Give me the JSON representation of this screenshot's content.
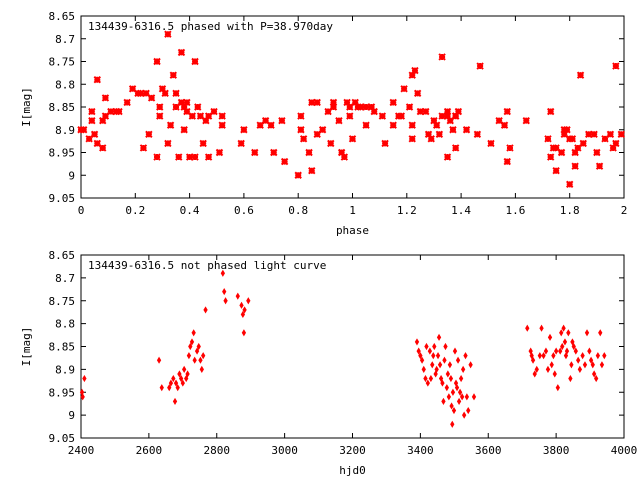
{
  "colors": {
    "points": "#ff0000",
    "axes": "#000000",
    "background": "#ffffff"
  },
  "chart_data": [
    {
      "type": "scatter",
      "title": "134439-6316.5 phased with P=38.970day",
      "xlabel": "phase",
      "ylabel": "I[mag]",
      "xlim": [
        0,
        2
      ],
      "ylim": [
        9.05,
        8.65
      ],
      "y_inverted": true,
      "grid": false,
      "marker": "star",
      "xticks": [
        "0",
        "0.2",
        "0.4",
        "0.6",
        "0.8",
        "1",
        "1.2",
        "1.4",
        "1.6",
        "1.8",
        "2"
      ],
      "yticks": [
        "8.65",
        "8.7",
        "8.75",
        "8.8",
        "8.85",
        "8.9",
        "8.95",
        "9",
        "9.05"
      ],
      "points": [
        [
          0.0,
          8.9
        ],
        [
          0.01,
          8.9
        ],
        [
          0.03,
          8.92
        ],
        [
          0.04,
          8.86
        ],
        [
          0.04,
          8.88
        ],
        [
          0.05,
          8.91
        ],
        [
          0.06,
          8.93
        ],
        [
          0.06,
          8.79
        ],
        [
          0.08,
          8.88
        ],
        [
          0.08,
          8.94
        ],
        [
          0.09,
          8.83
        ],
        [
          0.09,
          8.87
        ],
        [
          0.11,
          8.86
        ],
        [
          0.13,
          8.86
        ],
        [
          0.14,
          8.86
        ],
        [
          0.17,
          8.84
        ],
        [
          0.19,
          8.81
        ],
        [
          0.21,
          8.82
        ],
        [
          0.22,
          8.82
        ],
        [
          0.23,
          8.94
        ],
        [
          0.24,
          8.82
        ],
        [
          0.25,
          8.91
        ],
        [
          0.26,
          8.83
        ],
        [
          0.28,
          8.96
        ],
        [
          0.28,
          8.75
        ],
        [
          0.29,
          8.85
        ],
        [
          0.29,
          8.87
        ],
        [
          0.3,
          8.81
        ],
        [
          0.31,
          8.82
        ],
        [
          0.32,
          8.93
        ],
        [
          0.32,
          8.69
        ],
        [
          0.33,
          8.89
        ],
        [
          0.34,
          8.78
        ],
        [
          0.35,
          8.82
        ],
        [
          0.35,
          8.85
        ],
        [
          0.36,
          8.96
        ],
        [
          0.37,
          8.84
        ],
        [
          0.37,
          8.73
        ],
        [
          0.38,
          8.9
        ],
        [
          0.38,
          8.85
        ],
        [
          0.39,
          8.84
        ],
        [
          0.39,
          8.86
        ],
        [
          0.4,
          8.96
        ],
        [
          0.41,
          8.87
        ],
        [
          0.42,
          8.75
        ],
        [
          0.42,
          8.96
        ],
        [
          0.43,
          8.85
        ],
        [
          0.44,
          8.87
        ],
        [
          0.45,
          8.93
        ],
        [
          0.46,
          8.88
        ],
        [
          0.47,
          8.96
        ],
        [
          0.47,
          8.87
        ],
        [
          0.49,
          8.86
        ],
        [
          0.51,
          8.95
        ],
        [
          0.52,
          8.89
        ],
        [
          0.52,
          8.87
        ],
        [
          0.59,
          8.93
        ],
        [
          0.6,
          8.9
        ],
        [
          0.64,
          8.95
        ],
        [
          0.66,
          8.89
        ],
        [
          0.68,
          8.88
        ],
        [
          0.7,
          8.89
        ],
        [
          0.71,
          8.95
        ],
        [
          0.74,
          8.88
        ],
        [
          0.75,
          8.97
        ],
        [
          0.8,
          9.0
        ],
        [
          0.81,
          8.87
        ],
        [
          0.81,
          8.9
        ],
        [
          0.82,
          8.92
        ],
        [
          0.84,
          8.95
        ],
        [
          0.85,
          8.84
        ],
        [
          0.85,
          8.99
        ],
        [
          0.87,
          8.84
        ],
        [
          0.87,
          8.91
        ],
        [
          0.89,
          8.9
        ],
        [
          0.91,
          8.86
        ],
        [
          0.92,
          8.93
        ],
        [
          0.93,
          8.84
        ],
        [
          0.93,
          8.85
        ],
        [
          0.95,
          8.88
        ],
        [
          0.96,
          8.95
        ],
        [
          0.97,
          8.96
        ],
        [
          0.98,
          8.84
        ],
        [
          0.99,
          8.85
        ],
        [
          0.99,
          8.87
        ],
        [
          1.0,
          8.92
        ],
        [
          1.01,
          8.84
        ],
        [
          1.02,
          8.85
        ],
        [
          1.03,
          8.85
        ],
        [
          1.05,
          8.85
        ],
        [
          1.05,
          8.89
        ],
        [
          1.07,
          8.85
        ],
        [
          1.08,
          8.86
        ],
        [
          1.11,
          8.87
        ],
        [
          1.12,
          8.93
        ],
        [
          1.15,
          8.84
        ],
        [
          1.15,
          8.89
        ],
        [
          1.17,
          8.87
        ],
        [
          1.18,
          8.87
        ],
        [
          1.19,
          8.81
        ],
        [
          1.21,
          8.85
        ],
        [
          1.22,
          8.92
        ],
        [
          1.22,
          8.78
        ],
        [
          1.22,
          8.89
        ],
        [
          1.23,
          8.77
        ],
        [
          1.24,
          8.82
        ],
        [
          1.25,
          8.86
        ],
        [
          1.27,
          8.86
        ],
        [
          1.28,
          8.91
        ],
        [
          1.29,
          8.92
        ],
        [
          1.3,
          8.88
        ],
        [
          1.31,
          8.89
        ],
        [
          1.32,
          8.91
        ],
        [
          1.33,
          8.87
        ],
        [
          1.33,
          8.74
        ],
        [
          1.35,
          8.86
        ],
        [
          1.35,
          8.87
        ],
        [
          1.35,
          8.96
        ],
        [
          1.36,
          8.88
        ],
        [
          1.37,
          8.9
        ],
        [
          1.38,
          8.87
        ],
        [
          1.38,
          8.87
        ],
        [
          1.38,
          8.94
        ],
        [
          1.39,
          8.86
        ],
        [
          1.42,
          8.9
        ],
        [
          1.46,
          8.91
        ],
        [
          1.47,
          8.76
        ],
        [
          1.51,
          8.93
        ],
        [
          1.54,
          8.88
        ],
        [
          1.56,
          8.89
        ],
        [
          1.57,
          8.86
        ],
        [
          1.58,
          8.94
        ],
        [
          1.57,
          8.97
        ],
        [
          1.64,
          8.88
        ],
        [
          1.72,
          8.92
        ],
        [
          1.73,
          8.86
        ],
        [
          1.73,
          8.96
        ],
        [
          1.74,
          8.94
        ],
        [
          1.75,
          8.99
        ],
        [
          1.75,
          8.94
        ],
        [
          1.77,
          8.95
        ],
        [
          1.78,
          8.9
        ],
        [
          1.78,
          8.91
        ],
        [
          1.79,
          8.9
        ],
        [
          1.8,
          9.02
        ],
        [
          1.8,
          8.92
        ],
        [
          1.81,
          8.92
        ],
        [
          1.82,
          8.95
        ],
        [
          1.82,
          8.98
        ],
        [
          1.83,
          8.94
        ],
        [
          1.84,
          8.78
        ],
        [
          1.85,
          8.93
        ],
        [
          1.87,
          8.91
        ],
        [
          1.89,
          8.91
        ],
        [
          1.9,
          8.95
        ],
        [
          1.91,
          8.98
        ],
        [
          1.93,
          8.92
        ],
        [
          1.95,
          8.91
        ],
        [
          1.96,
          8.94
        ],
        [
          1.97,
          8.93
        ],
        [
          1.97,
          8.76
        ],
        [
          1.99,
          8.91
        ]
      ]
    },
    {
      "type": "scatter",
      "title": "134439-6316.5 not phased light curve",
      "xlabel": "hjd0",
      "ylabel": "I[mag]",
      "xlim": [
        2400,
        4000
      ],
      "ylim": [
        9.05,
        8.65
      ],
      "y_inverted": true,
      "grid": false,
      "marker": "diamond",
      "xticks": [
        "2400",
        "2600",
        "2800",
        "3000",
        "3200",
        "3400",
        "3600",
        "3800",
        "4000"
      ],
      "yticks": [
        "8.65",
        "8.7",
        "8.75",
        "8.8",
        "8.85",
        "8.9",
        "8.95",
        "9",
        "9.05"
      ],
      "points": [
        [
          2403,
          8.95
        ],
        [
          2405,
          8.96
        ],
        [
          2410,
          8.92
        ],
        [
          2630,
          8.88
        ],
        [
          2638,
          8.94
        ],
        [
          2660,
          8.94
        ],
        [
          2665,
          8.93
        ],
        [
          2672,
          8.92
        ],
        [
          2677,
          8.97
        ],
        [
          2680,
          8.93
        ],
        [
          2685,
          8.94
        ],
        [
          2690,
          8.91
        ],
        [
          2695,
          8.92
        ],
        [
          2700,
          8.93
        ],
        [
          2704,
          8.9
        ],
        [
          2710,
          8.92
        ],
        [
          2714,
          8.91
        ],
        [
          2718,
          8.87
        ],
        [
          2722,
          8.85
        ],
        [
          2727,
          8.84
        ],
        [
          2732,
          8.82
        ],
        [
          2735,
          8.88
        ],
        [
          2742,
          8.86
        ],
        [
          2747,
          8.85
        ],
        [
          2752,
          8.88
        ],
        [
          2756,
          8.9
        ],
        [
          2760,
          8.87
        ],
        [
          2767,
          8.77
        ],
        [
          2818,
          8.69
        ],
        [
          2822,
          8.73
        ],
        [
          2826,
          8.75
        ],
        [
          2862,
          8.74
        ],
        [
          2873,
          8.76
        ],
        [
          2877,
          8.78
        ],
        [
          2880,
          8.82
        ],
        [
          2882,
          8.77
        ],
        [
          2893,
          8.75
        ],
        [
          3390,
          8.84
        ],
        [
          3395,
          8.86
        ],
        [
          3400,
          8.87
        ],
        [
          3405,
          8.88
        ],
        [
          3410,
          8.9
        ],
        [
          3415,
          8.92
        ],
        [
          3418,
          8.85
        ],
        [
          3422,
          8.93
        ],
        [
          3428,
          8.86
        ],
        [
          3431,
          8.92
        ],
        [
          3435,
          8.89
        ],
        [
          3438,
          8.87
        ],
        [
          3441,
          8.85
        ],
        [
          3445,
          8.91
        ],
        [
          3448,
          8.9
        ],
        [
          3452,
          8.87
        ],
        [
          3455,
          8.83
        ],
        [
          3458,
          8.89
        ],
        [
          3461,
          8.92
        ],
        [
          3465,
          8.93
        ],
        [
          3468,
          8.97
        ],
        [
          3471,
          8.88
        ],
        [
          3474,
          8.85
        ],
        [
          3478,
          8.94
        ],
        [
          3481,
          8.91
        ],
        [
          3484,
          8.96
        ],
        [
          3487,
          8.89
        ],
        [
          3490,
          8.92
        ],
        [
          3492,
          8.98
        ],
        [
          3494,
          9.02
        ],
        [
          3496,
          8.95
        ],
        [
          3499,
          8.99
        ],
        [
          3502,
          8.86
        ],
        [
          3505,
          8.93
        ],
        [
          3508,
          8.94
        ],
        [
          3511,
          8.88
        ],
        [
          3514,
          8.97
        ],
        [
          3517,
          8.95
        ],
        [
          3520,
          8.92
        ],
        [
          3523,
          8.96
        ],
        [
          3526,
          8.9
        ],
        [
          3529,
          9.0
        ],
        [
          3533,
          8.87
        ],
        [
          3537,
          8.96
        ],
        [
          3541,
          8.99
        ],
        [
          3548,
          8.89
        ],
        [
          3558,
          8.96
        ],
        [
          3715,
          8.81
        ],
        [
          3725,
          8.86
        ],
        [
          3728,
          8.87
        ],
        [
          3732,
          8.88
        ],
        [
          3737,
          8.91
        ],
        [
          3743,
          8.9
        ],
        [
          3752,
          8.87
        ],
        [
          3757,
          8.81
        ],
        [
          3763,
          8.87
        ],
        [
          3770,
          8.86
        ],
        [
          3776,
          8.9
        ],
        [
          3782,
          8.83
        ],
        [
          3787,
          8.89
        ],
        [
          3792,
          8.87
        ],
        [
          3796,
          8.91
        ],
        [
          3800,
          8.86
        ],
        [
          3805,
          8.94
        ],
        [
          3812,
          8.86
        ],
        [
          3815,
          8.82
        ],
        [
          3818,
          8.85
        ],
        [
          3822,
          8.81
        ],
        [
          3826,
          8.84
        ],
        [
          3829,
          8.87
        ],
        [
          3832,
          8.86
        ],
        [
          3836,
          8.82
        ],
        [
          3842,
          8.92
        ],
        [
          3845,
          8.89
        ],
        [
          3848,
          8.84
        ],
        [
          3852,
          8.85
        ],
        [
          3858,
          8.86
        ],
        [
          3865,
          8.88
        ],
        [
          3870,
          8.9
        ],
        [
          3878,
          8.87
        ],
        [
          3885,
          8.89
        ],
        [
          3891,
          8.82
        ],
        [
          3898,
          8.86
        ],
        [
          3903,
          8.88
        ],
        [
          3908,
          8.89
        ],
        [
          3912,
          8.91
        ],
        [
          3918,
          8.92
        ],
        [
          3923,
          8.87
        ],
        [
          3930,
          8.82
        ],
        [
          3935,
          8.89
        ],
        [
          3942,
          8.87
        ]
      ]
    }
  ]
}
